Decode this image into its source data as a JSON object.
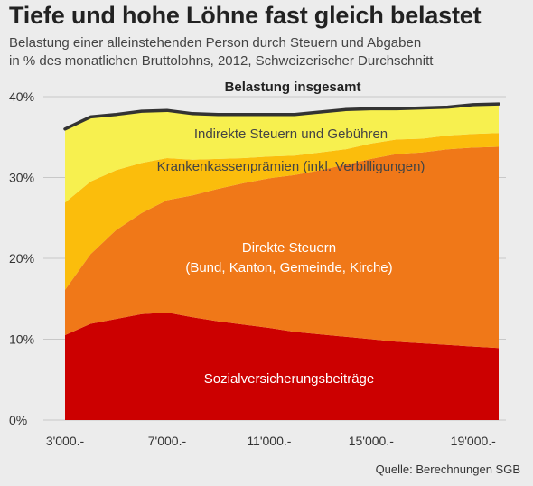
{
  "title": "Tiefe und hohe Löhne fast gleich belastet",
  "subtitle_line1": "Belastung einer alleinstehenden Person durch Steuern und Abgaben",
  "subtitle_line2": "in % des monatlichen Bruttolohns, 2012, Schweizerischer Durchschnitt",
  "source": "Quelle: Berechnungen SGB",
  "chart_data": {
    "type": "area",
    "stacked": true,
    "title": "Tiefe und hohe Löhne fast gleich belastet",
    "ylabel": "",
    "xlabel": "",
    "x": [
      3000,
      4000,
      5000,
      6000,
      7000,
      8000,
      9000,
      10000,
      11000,
      12000,
      13000,
      14000,
      15000,
      16000,
      17000,
      18000,
      19000,
      20000
    ],
    "xlim": [
      3000,
      20000
    ],
    "ylim": [
      0,
      40
    ],
    "x_ticks": [
      {
        "value": 3000,
        "label": "3'000.-"
      },
      {
        "value": 7000,
        "label": "7'000.-"
      },
      {
        "value": 11000,
        "label": "11'000.-"
      },
      {
        "value": 15000,
        "label": "15'000.-"
      },
      {
        "value": 19000,
        "label": "19'000.-"
      }
    ],
    "y_ticks": [
      {
        "value": 0,
        "label": "0%"
      },
      {
        "value": 10,
        "label": "10%"
      },
      {
        "value": 20,
        "label": "20%"
      },
      {
        "value": 30,
        "label": "30%"
      },
      {
        "value": 40,
        "label": "40%"
      }
    ],
    "series": [
      {
        "name": "Sozialversicherungsbeiträge",
        "color": "#cc0000",
        "values": [
          10.5,
          11.9,
          12.5,
          13.1,
          13.3,
          12.7,
          12.2,
          11.8,
          11.4,
          10.9,
          10.6,
          10.3,
          10.0,
          9.7,
          9.5,
          9.3,
          9.1,
          8.9
        ]
      },
      {
        "name": "Direkte Steuern (Bund, Kanton, Gemeinde, Kirche)",
        "color": "#f07818",
        "values": [
          5.6,
          8.6,
          11.0,
          12.5,
          13.9,
          15.1,
          16.4,
          17.5,
          18.5,
          19.4,
          20.3,
          21.3,
          22.3,
          23.2,
          23.6,
          24.2,
          24.6,
          24.9
        ]
      },
      {
        "name": "Krankenkassenprämien (inkl. Verbilligungen)",
        "color": "#fbbd0c",
        "values": [
          10.8,
          9.0,
          7.4,
          6.2,
          5.2,
          4.4,
          3.7,
          3.1,
          2.7,
          2.4,
          2.2,
          1.9,
          1.9,
          1.8,
          1.7,
          1.7,
          1.7,
          1.7
        ]
      },
      {
        "name": "Indirekte Steuern und Gebühren",
        "color": "#f7f04f",
        "values": [
          9.1,
          8.0,
          6.9,
          6.4,
          5.9,
          5.7,
          5.5,
          5.4,
          5.2,
          5.1,
          5.0,
          4.9,
          4.3,
          3.8,
          3.8,
          3.5,
          3.6,
          3.6
        ]
      }
    ],
    "total": {
      "name": "Belastung insgesamt",
      "color": "#333333",
      "values": [
        36.0,
        37.5,
        37.8,
        38.2,
        38.3,
        37.9,
        37.8,
        37.8,
        37.8,
        37.8,
        38.1,
        38.4,
        38.5,
        38.5,
        38.6,
        38.7,
        39.0,
        39.1
      ]
    },
    "labels": {
      "total": "Belastung insgesamt",
      "indirect": "Indirekte Steuern und Gebühren",
      "health": "Krankenkassenprämien (inkl. Verbilligungen)",
      "direct_line1": "Direkte Steuern",
      "direct_line2": "(Bund, Kanton, Gemeinde, Kirche)",
      "social": "Sozialversicherungsbeiträge"
    }
  }
}
